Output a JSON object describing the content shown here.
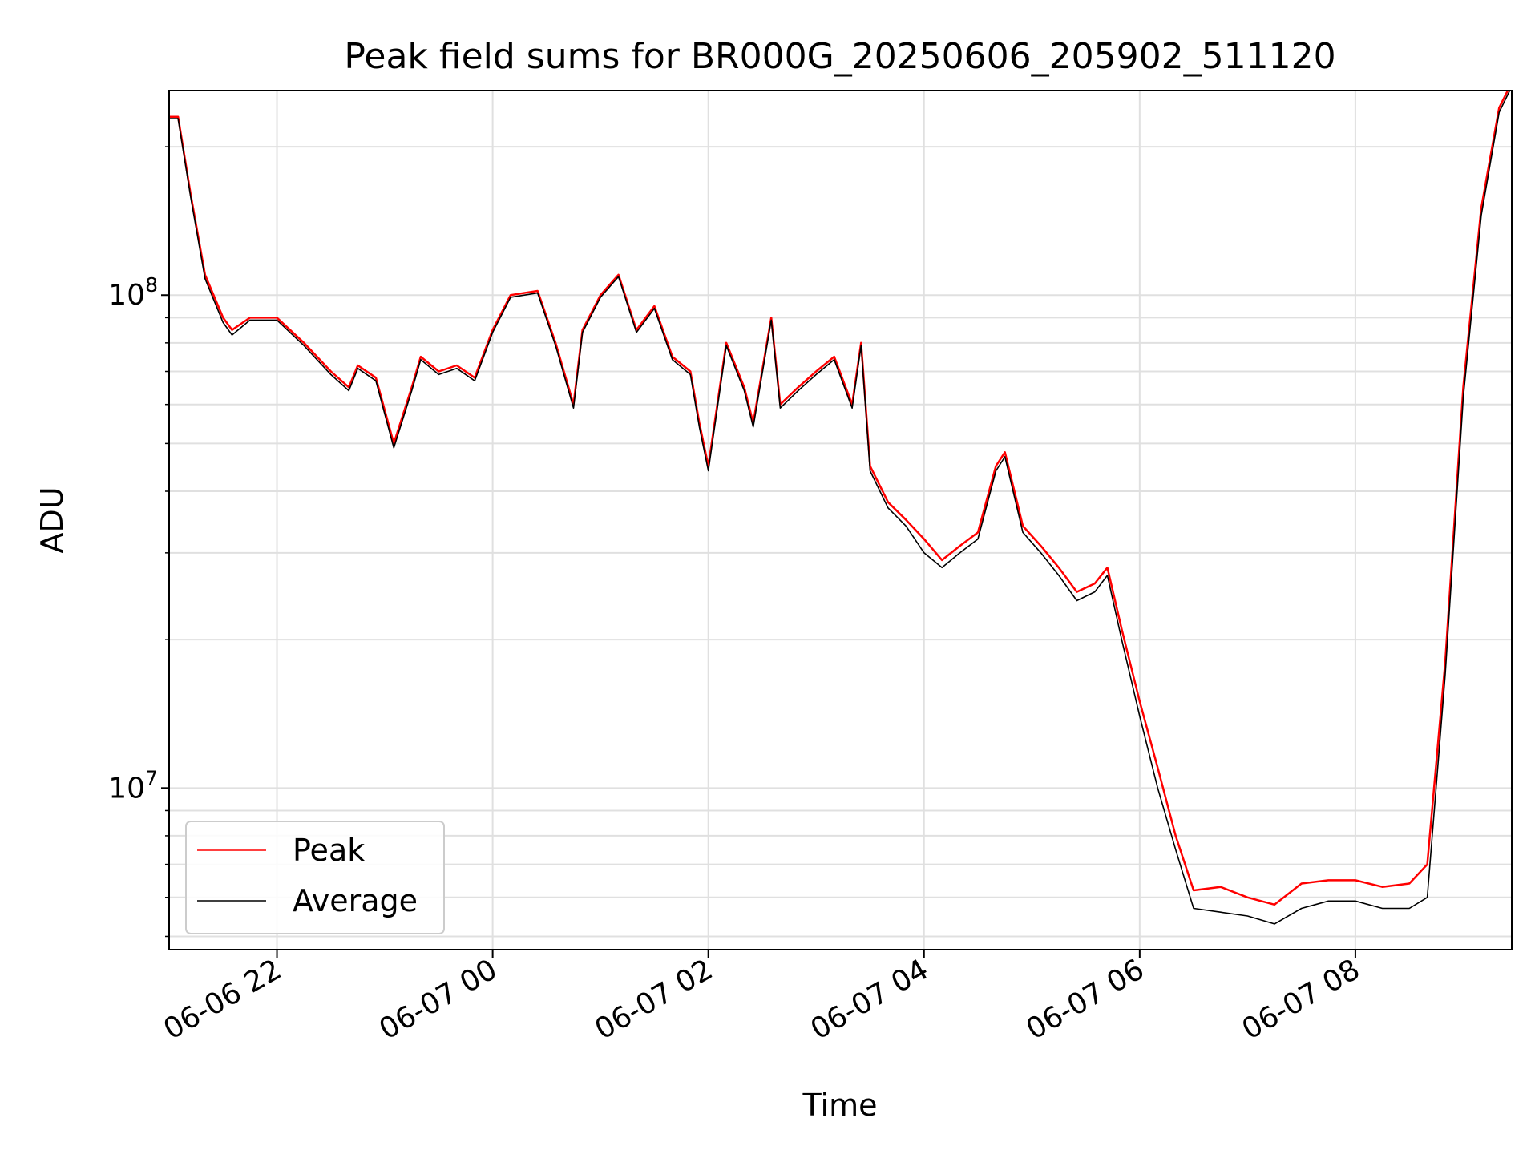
{
  "chart_data": {
    "type": "line",
    "title": "Peak field sums for BR000G_20250606_205902_511120",
    "xlabel": "Time",
    "ylabel": "ADU",
    "yscale": "log",
    "grid": true,
    "legend_position": "lower-left",
    "xlim": [
      "2025-06-06 21:00",
      "2025-06-07 09:27"
    ],
    "ylim": [
      4700000,
      260000000
    ],
    "x_ticks": [
      "2025-06-06 22:00",
      "2025-06-07 00:00",
      "2025-06-07 02:00",
      "2025-06-07 04:00",
      "2025-06-07 06:00",
      "2025-06-07 08:00"
    ],
    "x_tick_labels": [
      "06-06 22",
      "06-07 00",
      "06-07 02",
      "06-07 04",
      "06-07 06",
      "06-07 08"
    ],
    "y_ticks": [
      {
        "base": "10",
        "exp": "7",
        "value": 10000000
      },
      {
        "base": "10",
        "exp": "8",
        "value": 100000000
      }
    ],
    "series": [
      {
        "name": "Peak",
        "color": "#ff0000",
        "x": [
          "2025-06-06 21:00",
          "2025-06-06 21:05",
          "2025-06-06 21:12",
          "2025-06-06 21:20",
          "2025-06-06 21:30",
          "2025-06-06 21:35",
          "2025-06-06 21:45",
          "2025-06-06 22:00",
          "2025-06-06 22:15",
          "2025-06-06 22:30",
          "2025-06-06 22:40",
          "2025-06-06 22:45",
          "2025-06-06 22:55",
          "2025-06-06 23:05",
          "2025-06-06 23:15",
          "2025-06-06 23:20",
          "2025-06-06 23:30",
          "2025-06-06 23:40",
          "2025-06-06 23:50",
          "2025-06-07 00:00",
          "2025-06-07 00:10",
          "2025-06-07 00:25",
          "2025-06-07 00:35",
          "2025-06-07 00:45",
          "2025-06-07 00:50",
          "2025-06-07 01:00",
          "2025-06-07 01:10",
          "2025-06-07 01:20",
          "2025-06-07 01:30",
          "2025-06-07 01:40",
          "2025-06-07 01:50",
          "2025-06-07 01:55",
          "2025-06-07 02:00",
          "2025-06-07 02:10",
          "2025-06-07 02:20",
          "2025-06-07 02:25",
          "2025-06-07 02:35",
          "2025-06-07 02:40",
          "2025-06-07 02:50",
          "2025-06-07 03:00",
          "2025-06-07 03:10",
          "2025-06-07 03:20",
          "2025-06-07 03:25",
          "2025-06-07 03:30",
          "2025-06-07 03:40",
          "2025-06-07 03:50",
          "2025-06-07 04:00",
          "2025-06-07 04:10",
          "2025-06-07 04:20",
          "2025-06-07 04:30",
          "2025-06-07 04:40",
          "2025-06-07 04:45",
          "2025-06-07 04:55",
          "2025-06-07 05:05",
          "2025-06-07 05:15",
          "2025-06-07 05:25",
          "2025-06-07 05:35",
          "2025-06-07 05:42",
          "2025-06-07 05:50",
          "2025-06-07 06:00",
          "2025-06-07 06:10",
          "2025-06-07 06:20",
          "2025-06-07 06:30",
          "2025-06-07 06:45",
          "2025-06-07 07:00",
          "2025-06-07 07:15",
          "2025-06-07 07:30",
          "2025-06-07 07:45",
          "2025-06-07 08:00",
          "2025-06-07 08:15",
          "2025-06-07 08:30",
          "2025-06-07 08:40",
          "2025-06-07 08:50",
          "2025-06-07 09:00",
          "2025-06-07 09:10",
          "2025-06-07 09:20",
          "2025-06-07 09:27"
        ],
        "values": [
          230000000,
          230000000,
          160000000,
          110000000,
          90000000,
          85000000,
          90000000,
          90000000,
          80000000,
          70000000,
          65000000,
          72000000,
          68000000,
          50000000,
          65000000,
          75000000,
          70000000,
          72000000,
          68000000,
          85000000,
          100000000,
          102000000,
          80000000,
          60000000,
          85000000,
          100000000,
          110000000,
          85000000,
          95000000,
          75000000,
          70000000,
          55000000,
          45000000,
          80000000,
          65000000,
          55000000,
          90000000,
          60000000,
          65000000,
          70000000,
          75000000,
          60000000,
          80000000,
          45000000,
          38000000,
          35000000,
          32000000,
          29000000,
          31000000,
          33000000,
          45000000,
          48000000,
          34000000,
          31000000,
          28000000,
          25000000,
          26000000,
          28000000,
          21000000,
          15000000,
          11000000,
          8000000,
          6200000,
          6300000,
          6000000,
          5800000,
          6400000,
          6500000,
          6500000,
          6300000,
          6400000,
          7000000,
          18000000,
          65000000,
          150000000,
          240000000,
          270000000
        ]
      },
      {
        "name": "Average",
        "color": "#000000",
        "x": [
          "2025-06-06 21:00",
          "2025-06-06 21:05",
          "2025-06-06 21:12",
          "2025-06-06 21:20",
          "2025-06-06 21:30",
          "2025-06-06 21:35",
          "2025-06-06 21:45",
          "2025-06-06 22:00",
          "2025-06-06 22:15",
          "2025-06-06 22:30",
          "2025-06-06 22:40",
          "2025-06-06 22:45",
          "2025-06-06 22:55",
          "2025-06-06 23:05",
          "2025-06-06 23:15",
          "2025-06-06 23:20",
          "2025-06-06 23:30",
          "2025-06-06 23:40",
          "2025-06-06 23:50",
          "2025-06-07 00:00",
          "2025-06-07 00:10",
          "2025-06-07 00:25",
          "2025-06-07 00:35",
          "2025-06-07 00:45",
          "2025-06-07 00:50",
          "2025-06-07 01:00",
          "2025-06-07 01:10",
          "2025-06-07 01:20",
          "2025-06-07 01:30",
          "2025-06-07 01:40",
          "2025-06-07 01:50",
          "2025-06-07 01:55",
          "2025-06-07 02:00",
          "2025-06-07 02:10",
          "2025-06-07 02:20",
          "2025-06-07 02:25",
          "2025-06-07 02:35",
          "2025-06-07 02:40",
          "2025-06-07 02:50",
          "2025-06-07 03:00",
          "2025-06-07 03:10",
          "2025-06-07 03:20",
          "2025-06-07 03:25",
          "2025-06-07 03:30",
          "2025-06-07 03:40",
          "2025-06-07 03:50",
          "2025-06-07 04:00",
          "2025-06-07 04:10",
          "2025-06-07 04:20",
          "2025-06-07 04:30",
          "2025-06-07 04:40",
          "2025-06-07 04:45",
          "2025-06-07 04:55",
          "2025-06-07 05:05",
          "2025-06-07 05:15",
          "2025-06-07 05:25",
          "2025-06-07 05:35",
          "2025-06-07 05:42",
          "2025-06-07 05:50",
          "2025-06-07 06:00",
          "2025-06-07 06:10",
          "2025-06-07 06:20",
          "2025-06-07 06:30",
          "2025-06-07 06:45",
          "2025-06-07 07:00",
          "2025-06-07 07:15",
          "2025-06-07 07:30",
          "2025-06-07 07:45",
          "2025-06-07 08:00",
          "2025-06-07 08:15",
          "2025-06-07 08:30",
          "2025-06-07 08:40",
          "2025-06-07 08:50",
          "2025-06-07 09:00",
          "2025-06-07 09:10",
          "2025-06-07 09:20",
          "2025-06-07 09:27"
        ],
        "values": [
          228000000,
          228000000,
          158000000,
          108000000,
          88000000,
          83000000,
          89000000,
          89000000,
          79000000,
          69000000,
          64000000,
          71000000,
          67000000,
          49000000,
          64000000,
          74000000,
          69000000,
          71000000,
          67000000,
          84000000,
          99000000,
          101000000,
          79000000,
          59000000,
          84000000,
          99000000,
          109000000,
          84000000,
          94000000,
          74000000,
          69000000,
          54000000,
          44000000,
          79000000,
          64000000,
          54000000,
          89000000,
          59000000,
          64000000,
          69000000,
          74000000,
          59000000,
          79000000,
          44000000,
          37000000,
          34000000,
          30000000,
          28000000,
          30000000,
          32000000,
          44000000,
          47000000,
          33000000,
          30000000,
          27000000,
          24000000,
          25000000,
          27000000,
          20000000,
          14000000,
          10000000,
          7500000,
          5700000,
          5600000,
          5500000,
          5300000,
          5700000,
          5900000,
          5900000,
          5700000,
          5700000,
          6000000,
          17000000,
          62000000,
          145000000,
          235000000,
          265000000
        ]
      }
    ]
  }
}
